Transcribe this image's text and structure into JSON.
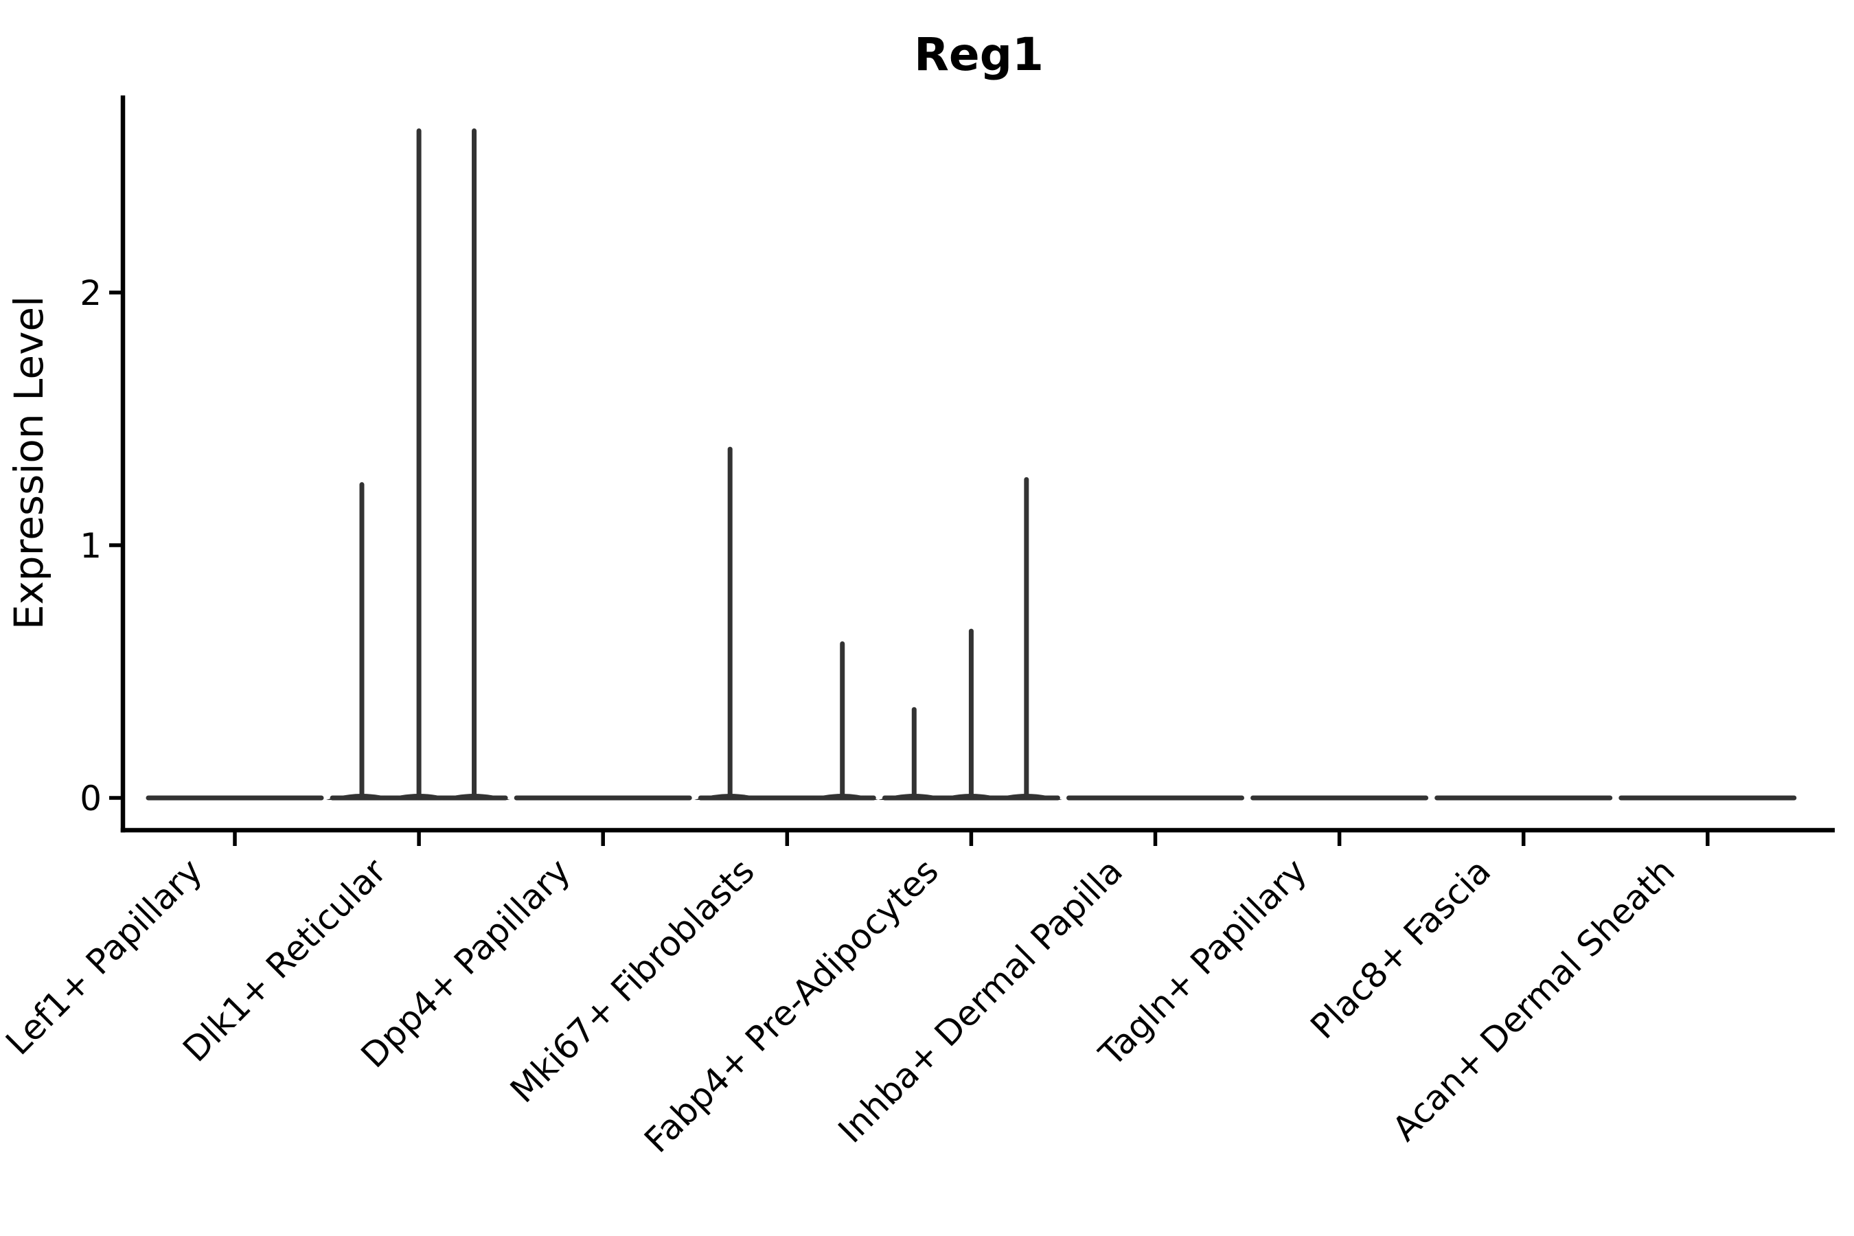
{
  "chart_data": {
    "type": "violin",
    "title": "Reg1",
    "xlabel": "",
    "ylabel": "Expression Level",
    "yticks": [
      0,
      1,
      2
    ],
    "ylim": [
      -0.13,
      2.78
    ],
    "grid": false,
    "legend": "none",
    "categories": [
      "Lef1+ Papillary",
      "Dlk1+ Reticular",
      "Dpp4+ Papillary",
      "Mki67+ Fibroblasts",
      "Fabp4+ Pre-Adipocytes",
      "Inhba+ Dermal Papilla",
      "Tagln+ Papillary",
      "Plac8+ Fascia",
      "Acan+ Dermal Sheath"
    ],
    "series": [
      {
        "category": "Lef1+ Papillary",
        "baseline_value": 0,
        "spikes": []
      },
      {
        "category": "Dlk1+ Reticular",
        "baseline_value": 0,
        "spikes": [
          {
            "offset": -0.31,
            "value": 1.24
          },
          {
            "offset": 0.0,
            "value": 2.64
          },
          {
            "offset": 0.3,
            "value": 2.64
          }
        ]
      },
      {
        "category": "Dpp4+ Papillary",
        "baseline_value": 0,
        "spikes": []
      },
      {
        "category": "Mki67+ Fibroblasts",
        "baseline_value": 0,
        "spikes": [
          {
            "offset": -0.31,
            "value": 1.38
          },
          {
            "offset": 0.3,
            "value": 0.61
          }
        ]
      },
      {
        "category": "Fabp4+ Pre-Adipocytes",
        "baseline_value": 0,
        "spikes": [
          {
            "offset": -0.31,
            "value": 0.35
          },
          {
            "offset": 0.0,
            "value": 0.66
          },
          {
            "offset": 0.3,
            "value": 1.26
          }
        ]
      },
      {
        "category": "Inhba+ Dermal Papilla",
        "baseline_value": 0,
        "spikes": []
      },
      {
        "category": "Tagln+ Papillary",
        "baseline_value": 0,
        "spikes": []
      },
      {
        "category": "Plac8+ Fascia",
        "baseline_value": 0,
        "spikes": []
      },
      {
        "category": "Acan+ Dermal Sheath",
        "baseline_value": 0,
        "spikes": []
      }
    ],
    "violin_half_width_frac": 0.47,
    "x_tick_rotation_deg": 45,
    "colors": {
      "axis": "#000000",
      "violin_stroke": "#333333",
      "text": "#000000",
      "background": "#ffffff"
    }
  }
}
